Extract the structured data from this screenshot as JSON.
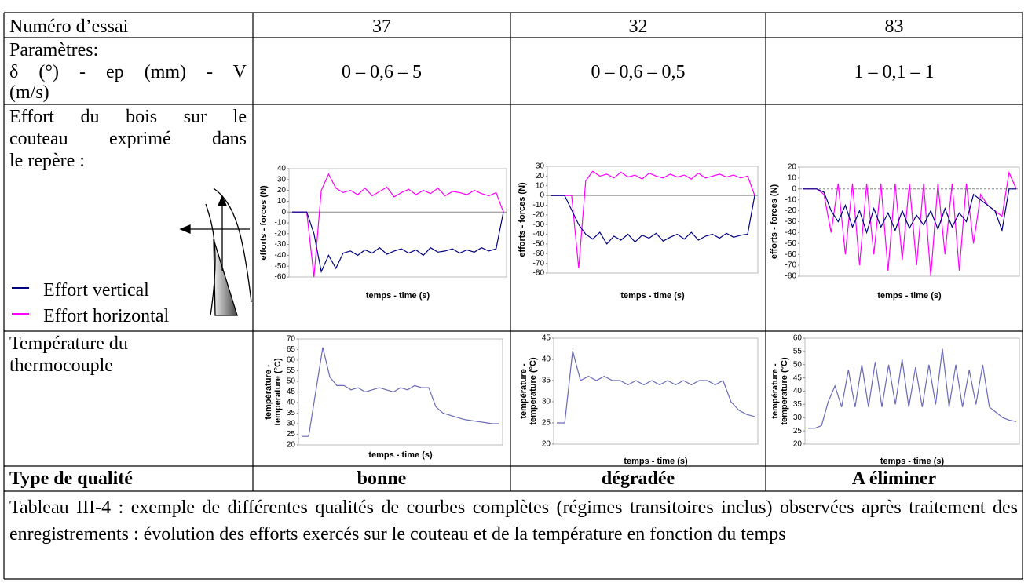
{
  "header": {
    "label": "Numéro d’essai",
    "values": [
      37,
      32,
      83
    ]
  },
  "parameters": {
    "label_lines": [
      "Paramètres:",
      "δ (°) - ep (mm) - V",
      "(m/s)"
    ],
    "values": [
      "0 – 0,6 – 5",
      "0 – 0,6 – 0,5",
      "1 – 0,1 – 1"
    ]
  },
  "forces": {
    "label_lines": [
      "Effort du bois sur le",
      "couteau exprimé dans",
      "le repère :"
    ],
    "legend": [
      {
        "label": "Effort vertical",
        "color": "#000080"
      },
      {
        "label": "Effort horizontal",
        "color": "#ff00ff"
      }
    ],
    "charts": [
      {
        "type": "line",
        "ylabel": "efforts - forces (N)",
        "xlabel": "temps - time (s)",
        "ylim": [
          -60,
          40
        ],
        "yticks": [
          -60,
          -50,
          -40,
          -30,
          -20,
          -10,
          0,
          10,
          20,
          30,
          40
        ],
        "zero_line": "solid",
        "series": [
          {
            "color": "#ff00ff",
            "values": [
              0,
              0,
              0,
              -60,
              20,
              35,
              22,
              18,
              20,
              16,
              22,
              15,
              19,
              23,
              14,
              18,
              21,
              16,
              20,
              17,
              22,
              15,
              19,
              18,
              16,
              20,
              17,
              15,
              18,
              0
            ]
          },
          {
            "color": "#000080",
            "values": [
              0,
              0,
              0,
              -20,
              -55,
              -40,
              -52,
              -38,
              -36,
              -40,
              -35,
              -38,
              -33,
              -39,
              -36,
              -34,
              -38,
              -35,
              -40,
              -33,
              -37,
              -36,
              -34,
              -38,
              -35,
              -37,
              -33,
              -36,
              -34,
              0
            ]
          }
        ]
      },
      {
        "type": "line",
        "ylabel": "efforts - forces (N)",
        "xlabel": "temps - time (s)",
        "ylim": [
          -80,
          30
        ],
        "yticks": [
          -80,
          -70,
          -60,
          -50,
          -40,
          -30,
          -20,
          -10,
          0,
          10,
          20,
          30
        ],
        "zero_line": "solid",
        "series": [
          {
            "color": "#ff00ff",
            "values": [
              0,
              0,
              0,
              0,
              -75,
              15,
              25,
              20,
              22,
              18,
              24,
              19,
              21,
              17,
              23,
              20,
              18,
              22,
              19,
              21,
              17,
              23,
              18,
              20,
              22,
              19,
              21,
              18,
              20,
              0
            ]
          },
          {
            "color": "#000080",
            "values": [
              0,
              0,
              0,
              -15,
              -30,
              -40,
              -45,
              -38,
              -50,
              -42,
              -46,
              -40,
              -48,
              -41,
              -44,
              -39,
              -47,
              -43,
              -40,
              -45,
              -38,
              -46,
              -42,
              -40,
              -44,
              -39,
              -43,
              -41,
              -40,
              0
            ]
          }
        ]
      },
      {
        "type": "line",
        "ylabel": "efforts - forces (N)",
        "xlabel": "temps - time (s)",
        "ylim": [
          -80,
          20
        ],
        "yticks": [
          -80,
          -70,
          -60,
          -50,
          -40,
          -30,
          -20,
          -10,
          0,
          10,
          20
        ],
        "zero_line": "dashed",
        "series": [
          {
            "color": "#ff00ff",
            "values": [
              0,
              0,
              0,
              -5,
              -40,
              5,
              -60,
              5,
              -70,
              5,
              -60,
              5,
              -75,
              5,
              -65,
              5,
              -70,
              5,
              -80,
              5,
              -60,
              5,
              -75,
              5,
              -50,
              -5,
              -15,
              -20,
              -25,
              15,
              0
            ]
          },
          {
            "color": "#000080",
            "values": [
              0,
              0,
              0,
              -3,
              -20,
              -30,
              -15,
              -35,
              -20,
              -40,
              -18,
              -35,
              -22,
              -38,
              -20,
              -36,
              -24,
              -33,
              -20,
              -37,
              -18,
              -35,
              -22,
              -30,
              -5,
              -10,
              -15,
              -20,
              -38,
              0,
              0
            ]
          }
        ]
      }
    ]
  },
  "temperature": {
    "label_lines": [
      "Température du",
      "thermocouple"
    ],
    "charts": [
      {
        "type": "line",
        "ylabel": [
          "température -",
          "temperature (°C)"
        ],
        "xlabel": "temps - time (s)",
        "ylim": [
          20,
          70
        ],
        "yticks": [
          20,
          25,
          30,
          35,
          40,
          45,
          50,
          55,
          60,
          65,
          70
        ],
        "series": [
          {
            "color": "#6a6ab8",
            "values": [
              24,
              24,
              45,
              66,
              52,
              48,
              48,
              46,
              47,
              45,
              46,
              47,
              46,
              45,
              47,
              46,
              48,
              47,
              47,
              38,
              35,
              34,
              33,
              32,
              31.5,
              31,
              30.5,
              30,
              30
            ]
          }
        ]
      },
      {
        "type": "line",
        "ylabel": [
          "température -",
          "temperature (°C)"
        ],
        "xlabel": "temps - time (s)",
        "ylim": [
          20,
          45
        ],
        "yticks": [
          20,
          25,
          30,
          35,
          40,
          45
        ],
        "series": [
          {
            "color": "#6a6ab8",
            "values": [
              25,
              25,
              42,
              35,
              36,
              35,
              36,
              35,
              35,
              34,
              35,
              34,
              35,
              34,
              35,
              34,
              35,
              34,
              35,
              35,
              34,
              35,
              30,
              28,
              27,
              26.5
            ]
          }
        ]
      },
      {
        "type": "line",
        "ylabel": [
          "température -",
          "temperature (°C)"
        ],
        "xlabel": "temps - time (s)",
        "ylim": [
          20,
          60
        ],
        "yticks": [
          20,
          25,
          30,
          35,
          40,
          45,
          50,
          55,
          60
        ],
        "series": [
          {
            "color": "#6a6ab8",
            "values": [
              26,
              26,
              27,
              36,
              42,
              34,
              48,
              34,
              50,
              34,
              51,
              34,
              50,
              35,
              52,
              34,
              49,
              34,
              50,
              35,
              56,
              34,
              50,
              34,
              48,
              35,
              50,
              34,
              32,
              30,
              29,
              28.5
            ]
          }
        ]
      }
    ]
  },
  "quality": {
    "label": "Type de qualité",
    "values": [
      "bonne",
      "dégradée",
      "A éliminer"
    ]
  },
  "caption": "Tableau III-4 : exemple de différentes qualités de courbes complètes (régimes transitoires inclus) observées après traitement des enregistrements : évolution des efforts exercés sur le couteau et de la température en fonction du temps"
}
